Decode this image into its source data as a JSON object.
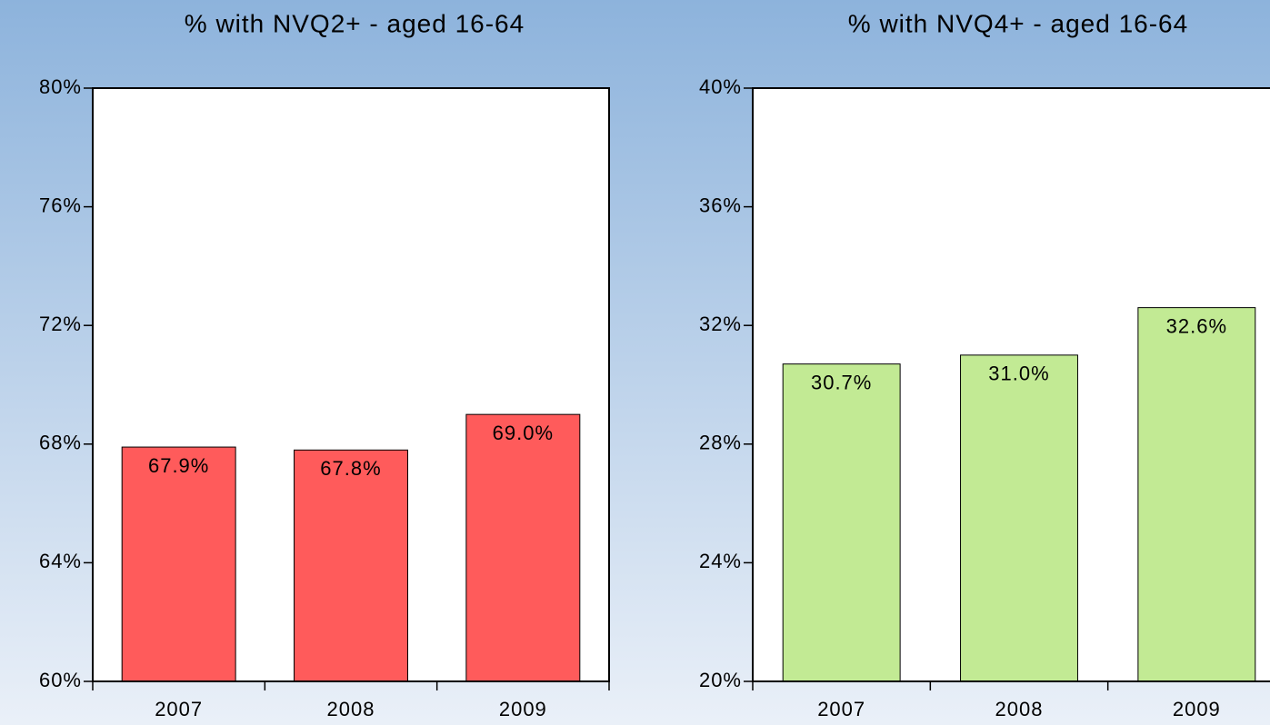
{
  "chart_data": [
    {
      "type": "bar",
      "title": "% with NVQ2+ - aged 16-64",
      "categories": [
        "2007",
        "2008",
        "2009"
      ],
      "values": [
        67.9,
        67.8,
        69.0
      ],
      "value_labels": [
        "67.9%",
        "67.8%",
        "69.0%"
      ],
      "color": "#ff5b5b",
      "ylim": [
        60,
        80
      ],
      "yticks": [
        {
          "value": 60,
          "label": "60%"
        },
        {
          "value": 64,
          "label": "64%"
        },
        {
          "value": 68,
          "label": "68%"
        },
        {
          "value": 72,
          "label": "72%"
        },
        {
          "value": 76,
          "label": "76%"
        },
        {
          "value": 80,
          "label": "80%"
        }
      ]
    },
    {
      "type": "bar",
      "title": "% with NVQ4+ - aged 16-64",
      "categories": [
        "2007",
        "2008",
        "2009"
      ],
      "values": [
        30.7,
        31.0,
        32.6
      ],
      "value_labels": [
        "30.7%",
        "31.0%",
        "32.6%"
      ],
      "color": "#c2ea94",
      "ylim": [
        20,
        40
      ],
      "yticks": [
        {
          "value": 20,
          "label": "20%"
        },
        {
          "value": 24,
          "label": "24%"
        },
        {
          "value": 28,
          "label": "28%"
        },
        {
          "value": 32,
          "label": "32%"
        },
        {
          "value": 36,
          "label": "36%"
        },
        {
          "value": 40,
          "label": "40%"
        }
      ]
    }
  ]
}
